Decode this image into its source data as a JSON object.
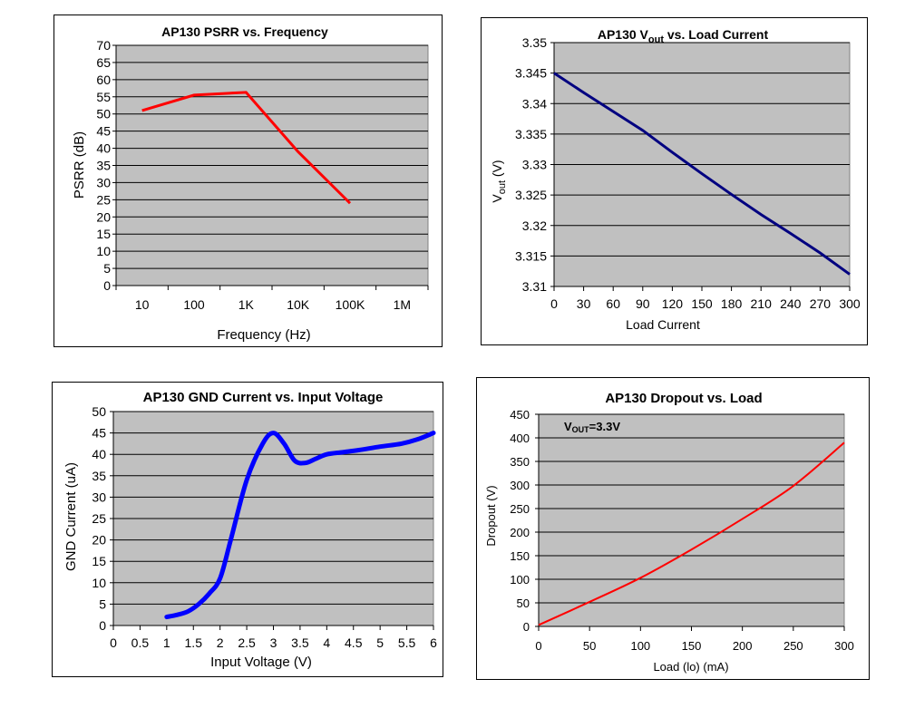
{
  "chart_data": [
    {
      "type": "line",
      "title": "AP130 PSRR vs. Frequency",
      "xlabel": "Frequency (Hz)",
      "ylabel": "PSRR (dB)",
      "x_scale": "log",
      "x_ticks": [
        "10",
        "100",
        "1K",
        "10K",
        "100K",
        "1M"
      ],
      "y_ticks": [
        "0",
        "5",
        "10",
        "15",
        "20",
        "25",
        "30",
        "35",
        "40",
        "45",
        "50",
        "55",
        "60",
        "65",
        "70"
      ],
      "ylim": [
        0,
        70
      ],
      "xlim": [
        10,
        1000000
      ],
      "grid": "horizontal",
      "colors": {
        "plot_bg": "#c0c0c0",
        "series": "#ff0000"
      },
      "series": [
        {
          "x": [
            10,
            100,
            1000,
            10000,
            100000
          ],
          "y": [
            51,
            55.5,
            56.3,
            39,
            24
          ]
        }
      ]
    },
    {
      "type": "line",
      "title_main": "AP130 V",
      "title_sub": "out",
      "title_rest": " vs. Load Current",
      "xlabel": "Load Current",
      "ylabel_main": "V",
      "ylabel_sub": "out",
      "ylabel_rest": " (V)",
      "x_ticks": [
        "0",
        "30",
        "60",
        "90",
        "120",
        "150",
        "180",
        "210",
        "240",
        "270",
        "300"
      ],
      "y_ticks": [
        "3.31",
        "3.315",
        "3.32",
        "3.325",
        "3.33",
        "3.335",
        "3.34",
        "3.345",
        "3.35"
      ],
      "xlim": [
        0,
        300
      ],
      "ylim": [
        3.31,
        3.35
      ],
      "grid": "horizontal",
      "colors": {
        "plot_bg": "#c0c0c0",
        "series": "#000080"
      },
      "series": [
        {
          "x": [
            0,
            30,
            60,
            90,
            120,
            150,
            180,
            210,
            240,
            270,
            300
          ],
          "y": [
            3.345,
            3.3418,
            3.3387,
            3.3356,
            3.332,
            3.3285,
            3.3251,
            3.3218,
            3.3187,
            3.3155,
            3.312
          ]
        }
      ]
    },
    {
      "type": "line",
      "title": "AP130 GND Current  vs. Input Voltage",
      "xlabel": "Input Voltage (V)",
      "ylabel": "GND Current (uA)",
      "x_ticks": [
        "0",
        "0.5",
        "1",
        "1.5",
        "2",
        "2.5",
        "3",
        "3.5",
        "4",
        "4.5",
        "5",
        "5.5",
        "6"
      ],
      "y_ticks": [
        "0",
        "5",
        "10",
        "15",
        "20",
        "25",
        "30",
        "35",
        "40",
        "45",
        "50"
      ],
      "xlim": [
        0,
        6
      ],
      "ylim": [
        0,
        50
      ],
      "grid": "horizontal",
      "colors": {
        "plot_bg": "#c0c0c0",
        "series": "#0000ff"
      },
      "series": [
        {
          "x": [
            1,
            1.2,
            1.4,
            1.6,
            1.8,
            2.0,
            2.2,
            2.5,
            2.8,
            3.0,
            3.2,
            3.4,
            3.6,
            3.8,
            4.0,
            4.3,
            4.6,
            5.0,
            5.4,
            5.7,
            6.0
          ],
          "y": [
            2,
            2.5,
            3.3,
            5,
            7.5,
            11,
            20,
            34,
            42.5,
            45,
            42.5,
            38.5,
            38,
            39,
            40,
            40.5,
            41,
            41.8,
            42.5,
            43.5,
            45
          ]
        }
      ]
    },
    {
      "type": "line",
      "title": "AP130 Dropout vs. Load",
      "annotation_main": "V",
      "annotation_sub": "OUT",
      "annotation_rest": "=3.3V",
      "xlabel": "Load (lo) (mA)",
      "ylabel": "Dropout (V)",
      "x_ticks": [
        "0",
        "50",
        "100",
        "150",
        "200",
        "250",
        "300"
      ],
      "y_ticks": [
        "0",
        "50",
        "100",
        "150",
        "200",
        "250",
        "300",
        "350",
        "400",
        "450"
      ],
      "xlim": [
        0,
        300
      ],
      "ylim": [
        0,
        450
      ],
      "grid": "horizontal",
      "colors": {
        "plot_bg": "#c0c0c0",
        "series": "#ff0000"
      },
      "series": [
        {
          "x": [
            0,
            50,
            100,
            150,
            200,
            250,
            300
          ],
          "y": [
            3,
            52,
            103,
            163,
            228,
            298,
            390
          ]
        }
      ]
    }
  ]
}
